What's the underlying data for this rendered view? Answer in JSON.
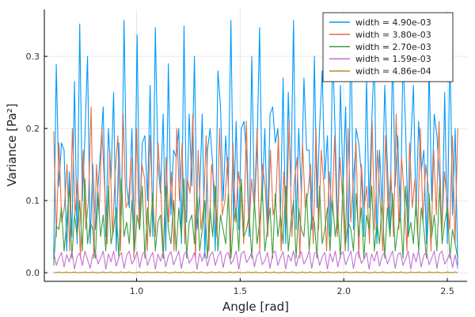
{
  "chart_data": {
    "type": "line",
    "title": "",
    "xlabel": "Angle [rad]",
    "ylabel": "Variance [Pa²]",
    "xlim": [
      0.555,
      2.595
    ],
    "ylim": [
      -0.012,
      0.365
    ],
    "xticks": [
      1.0,
      1.5,
      2.0,
      2.5
    ],
    "xtick_labels": [
      "1.0",
      "1.5",
      "2.0",
      "2.5"
    ],
    "yticks": [
      0.0,
      0.1,
      0.2,
      0.3
    ],
    "ytick_labels": [
      "0.0",
      "0.1",
      "0.2",
      "0.3"
    ],
    "grid": true,
    "legend_position": "top-right",
    "x_range": [
      0.6,
      2.55
    ],
    "point_count": 156,
    "series": [
      {
        "name": "width = 4.90e-03",
        "color": "#009AFA",
        "values": [
          0.019,
          0.289,
          0.12,
          0.18,
          0.17,
          0.03,
          0.14,
          0.05,
          0.265,
          0.04,
          0.345,
          0.1,
          0.19,
          0.3,
          0.04,
          0.15,
          0.06,
          0.12,
          0.17,
          0.23,
          0.05,
          0.2,
          0.13,
          0.25,
          0.03,
          0.18,
          0.08,
          0.35,
          0.12,
          0.09,
          0.2,
          0.04,
          0.33,
          0.07,
          0.18,
          0.19,
          0.1,
          0.26,
          0.05,
          0.34,
          0.15,
          0.11,
          0.22,
          0.03,
          0.29,
          0.08,
          0.17,
          0.16,
          0.2,
          0.04,
          0.342,
          0.07,
          0.22,
          0.12,
          0.3,
          0.06,
          0.11,
          0.22,
          0.02,
          0.17,
          0.2,
          0.15,
          0.03,
          0.28,
          0.23,
          0.1,
          0.19,
          0.12,
          0.35,
          0.07,
          0.21,
          0.06,
          0.2,
          0.21,
          0.16,
          0.05,
          0.3,
          0.09,
          0.17,
          0.34,
          0.1,
          0.2,
          0.06,
          0.22,
          0.23,
          0.18,
          0.2,
          0.08,
          0.27,
          0.04,
          0.25,
          0.12,
          0.35,
          0.06,
          0.2,
          0.11,
          0.27,
          0.17,
          0.17,
          0.06,
          0.3,
          0.09,
          0.2,
          0.28,
          0.13,
          0.19,
          0.05,
          0.31,
          0.19,
          0.06,
          0.26,
          0.12,
          0.23,
          0.03,
          0.35,
          0.06,
          0.2,
          0.18,
          0.14,
          0.05,
          0.27,
          0.09,
          0.21,
          0.3,
          0.04,
          0.17,
          0.09,
          0.26,
          0.15,
          0.06,
          0.31,
          0.12,
          0.19,
          0.07,
          0.3,
          0.2,
          0.05,
          0.18,
          0.26,
          0.08,
          0.21,
          0.14,
          0.17,
          0.04,
          0.29,
          0.1,
          0.22,
          0.19,
          0.13,
          0.06,
          0.25,
          0.04,
          0.32,
          0.08,
          0.2,
          0.01
        ]
      },
      {
        "name": "width = 3.80e-03",
        "color": "#E36F47",
        "values": [
          0.196,
          0.05,
          0.18,
          0.07,
          0.09,
          0.15,
          0.03,
          0.2,
          0.08,
          0.13,
          0.02,
          0.17,
          0.06,
          0.1,
          0.23,
          0.02,
          0.15,
          0.08,
          0.2,
          0.12,
          0.04,
          0.17,
          0.05,
          0.14,
          0.19,
          0.03,
          0.22,
          0.09,
          0.1,
          0.16,
          0.02,
          0.2,
          0.06,
          0.15,
          0.13,
          0.03,
          0.19,
          0.09,
          0.05,
          0.18,
          0.12,
          0.02,
          0.16,
          0.07,
          0.14,
          0.03,
          0.2,
          0.1,
          0.18,
          0.04,
          0.13,
          0.11,
          0.22,
          0.02,
          0.17,
          0.06,
          0.09,
          0.19,
          0.03,
          0.15,
          0.12,
          0.05,
          0.2,
          0.08,
          0.1,
          0.16,
          0.02,
          0.18,
          0.07,
          0.14,
          0.11,
          0.04,
          0.21,
          0.06,
          0.13,
          0.09,
          0.2,
          0.03,
          0.15,
          0.12,
          0.05,
          0.17,
          0.08,
          0.1,
          0.19,
          0.03,
          0.14,
          0.07,
          0.21,
          0.05,
          0.13,
          0.16,
          0.02,
          0.18,
          0.09,
          0.11,
          0.15,
          0.04,
          0.2,
          0.06,
          0.17,
          0.12,
          0.03,
          0.14,
          0.08,
          0.19,
          0.05,
          0.16,
          0.1,
          0.03,
          0.2,
          0.07,
          0.13,
          0.18,
          0.02,
          0.15,
          0.09,
          0.12,
          0.04,
          0.21,
          0.06,
          0.17,
          0.1,
          0.03,
          0.19,
          0.08,
          0.14,
          0.05,
          0.22,
          0.06,
          0.16,
          0.11,
          0.03,
          0.18,
          0.09,
          0.13,
          0.05,
          0.2,
          0.07,
          0.15,
          0.12,
          0.03,
          0.17,
          0.08,
          0.21,
          0.05,
          0.14,
          0.1,
          0.06,
          0.19,
          0.04,
          0.2
        ]
      },
      {
        "name": "width = 2.70e-03",
        "color": "#3E9F3E",
        "values": [
          0.01,
          0.065,
          0.06,
          0.09,
          0.03,
          0.07,
          0.12,
          0.02,
          0.08,
          0.05,
          0.1,
          0.03,
          0.13,
          0.04,
          0.07,
          0.06,
          0.02,
          0.11,
          0.05,
          0.08,
          0.03,
          0.12,
          0.04,
          0.06,
          0.09,
          0.02,
          0.13,
          0.05,
          0.07,
          0.04,
          0.1,
          0.03,
          0.08,
          0.06,
          0.12,
          0.02,
          0.09,
          0.05,
          0.11,
          0.03,
          0.07,
          0.08,
          0.02,
          0.12,
          0.06,
          0.04,
          0.1,
          0.03,
          0.09,
          0.05,
          0.13,
          0.02,
          0.07,
          0.08,
          0.04,
          0.11,
          0.03,
          0.06,
          0.1,
          0.02,
          0.09,
          0.05,
          0.12,
          0.03,
          0.08,
          0.06,
          0.04,
          0.11,
          0.02,
          0.07,
          0.09,
          0.03,
          0.13,
          0.05,
          0.06,
          0.08,
          0.02,
          0.1,
          0.04,
          0.07,
          0.12,
          0.03,
          0.06,
          0.09,
          0.02,
          0.11,
          0.05,
          0.08,
          0.04,
          0.12,
          0.03,
          0.07,
          0.1,
          0.02,
          0.09,
          0.06,
          0.05,
          0.11,
          0.03,
          0.08,
          0.07,
          0.02,
          0.12,
          0.04,
          0.06,
          0.09,
          0.03,
          0.1,
          0.05,
          0.08,
          0.02,
          0.13,
          0.04,
          0.07,
          0.06,
          0.03,
          0.11,
          0.05,
          0.09,
          0.02,
          0.08,
          0.06,
          0.12,
          0.03,
          0.07,
          0.04,
          0.1,
          0.02,
          0.09,
          0.05,
          0.11,
          0.03,
          0.06,
          0.08,
          0.02,
          0.12,
          0.05,
          0.07,
          0.04,
          0.1,
          0.03,
          0.09,
          0.06,
          0.02,
          0.11,
          0.05,
          0.08,
          0.03,
          0.12,
          0.04,
          0.07,
          0.09,
          0.02,
          0.06,
          0.04,
          0.02
        ]
      },
      {
        "name": "width = 1.59e-03",
        "color": "#C271D2",
        "values": [
          0.03,
          0.01,
          0.02,
          0.028,
          0.008,
          0.025,
          0.015,
          0.03,
          0.005,
          0.022,
          0.027,
          0.01,
          0.03,
          0.018,
          0.006,
          0.025,
          0.029,
          0.012,
          0.02,
          0.03,
          0.005,
          0.026,
          0.015,
          0.03,
          0.009,
          0.022,
          0.028,
          0.006,
          0.024,
          0.03,
          0.012,
          0.018,
          0.029,
          0.007,
          0.025,
          0.03,
          0.01,
          0.021,
          0.028,
          0.005,
          0.026,
          0.016,
          0.03,
          0.008,
          0.023,
          0.029,
          0.011,
          0.02,
          0.03,
          0.006,
          0.025,
          0.03,
          0.013,
          0.019,
          0.028,
          0.005,
          0.027,
          0.016,
          0.03,
          0.009,
          0.024,
          0.029,
          0.01,
          0.022,
          0.03,
          0.007,
          0.025,
          0.028,
          0.012,
          0.018,
          0.03,
          0.005,
          0.026,
          0.03,
          0.014,
          0.02,
          0.029,
          0.008,
          0.024,
          0.03,
          0.011,
          0.017,
          0.028,
          0.006,
          0.027,
          0.03,
          0.01,
          0.021,
          0.029,
          0.005,
          0.025,
          0.016,
          0.03,
          0.009,
          0.023,
          0.029,
          0.012,
          0.019,
          0.03,
          0.006,
          0.026,
          0.03,
          0.01,
          0.022,
          0.028,
          0.005,
          0.027,
          0.015,
          0.03,
          0.008,
          0.024,
          0.029,
          0.011,
          0.02,
          0.03,
          0.006,
          0.025,
          0.03,
          0.013,
          0.018,
          0.028,
          0.005,
          0.026,
          0.016,
          0.03,
          0.009,
          0.023,
          0.029,
          0.012,
          0.021,
          0.03,
          0.006,
          0.025,
          0.028,
          0.01,
          0.019,
          0.03,
          0.005,
          0.027,
          0.015,
          0.03,
          0.008,
          0.024,
          0.029,
          0.011,
          0.02,
          0.03,
          0.006,
          0.026,
          0.03,
          0.012,
          0.018,
          0.028,
          0.007,
          0.025,
          0.005
        ]
      },
      {
        "name": "width = 4.86e-04",
        "color": "#AC8D18",
        "values": [
          0.0,
          0.0,
          0.001,
          0.0,
          0.0,
          0.001,
          0.0,
          0.0,
          0.001,
          0.0,
          0.0,
          0.0,
          0.001,
          0.0,
          0.0,
          0.001,
          0.0,
          0.0,
          0.0,
          0.001,
          0.0,
          0.0,
          0.001,
          0.0,
          0.0,
          0.0,
          0.001,
          0.0,
          0.0,
          0.001,
          0.0,
          0.0,
          0.0,
          0.001,
          0.0,
          0.0,
          0.001,
          0.0,
          0.0,
          0.0,
          0.001,
          0.0,
          0.0,
          0.001,
          0.0,
          0.0,
          0.0,
          0.001,
          0.0,
          0.0,
          0.001,
          0.0,
          0.0,
          0.0,
          0.001,
          0.0,
          0.0,
          0.001,
          0.0,
          0.0,
          0.0,
          0.001,
          0.0,
          0.0,
          0.001,
          0.0,
          0.0,
          0.0,
          0.001,
          0.0,
          0.0,
          0.001,
          0.0,
          0.0,
          0.0,
          0.001,
          0.0,
          0.0,
          0.001,
          0.0,
          0.0,
          0.0,
          0.001,
          0.0,
          0.0,
          0.001,
          0.0,
          0.0,
          0.0,
          0.001,
          0.0,
          0.0,
          0.001,
          0.0,
          0.0,
          0.0,
          0.001,
          0.0,
          0.0,
          0.001,
          0.0,
          0.0,
          0.0,
          0.001,
          0.0,
          0.0,
          0.001,
          0.0,
          0.0,
          0.0,
          0.001,
          0.0,
          0.0,
          0.001,
          0.0,
          0.0,
          0.0,
          0.001,
          0.0,
          0.0,
          0.001,
          0.0,
          0.0,
          0.0,
          0.001,
          0.0,
          0.0,
          0.001,
          0.0,
          0.0,
          0.0,
          0.001,
          0.0,
          0.0,
          0.001,
          0.0,
          0.0,
          0.0,
          0.001,
          0.0,
          0.0,
          0.001,
          0.0,
          0.0,
          0.0,
          0.001,
          0.0,
          0.0,
          0.001,
          0.0,
          0.0,
          0.0,
          0.001,
          0.0,
          0.0,
          0.001,
          0.0
        ]
      }
    ]
  }
}
